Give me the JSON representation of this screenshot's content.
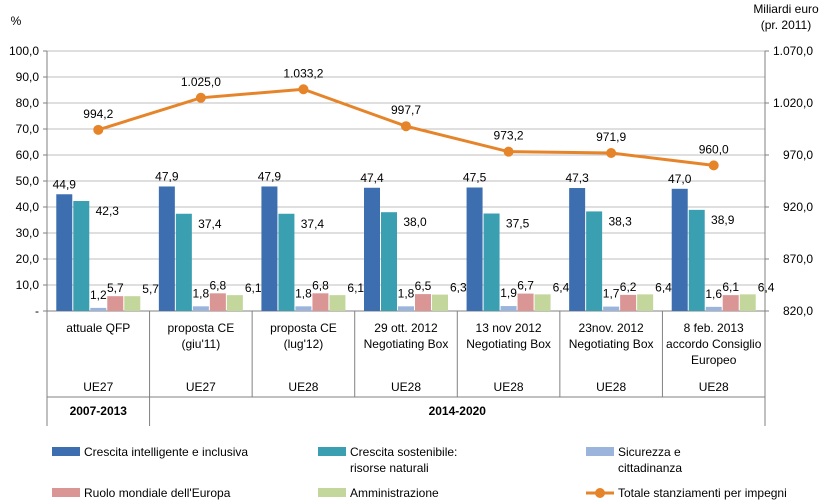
{
  "chart_data": {
    "type": "bar",
    "left_axis_unit": "%",
    "right_axis_unit_line1": "Miliardi euro",
    "right_axis_unit_line2": "(pr. 2011)",
    "left_ticks": [
      "-",
      "10,0",
      "20,0",
      "30,0",
      "40,0",
      "50,0",
      "60,0",
      "70,0",
      "80,0",
      "90,0",
      "100,0"
    ],
    "right_ticks": [
      "820,0",
      "870,0",
      "920,0",
      "970,0",
      "1.020,0",
      "1.070,0"
    ],
    "ylim_left": [
      0,
      100
    ],
    "ylim_right": [
      820,
      1070
    ],
    "categories": [
      {
        "line1": "attuale QFP",
        "line2": "",
        "line3": "",
        "group": "UE27"
      },
      {
        "line1": "proposta CE",
        "line2": "(giu'11)",
        "line3": "",
        "group": "UE27"
      },
      {
        "line1": "proposta CE",
        "line2": "(lug'12)",
        "line3": "",
        "group": "UE28"
      },
      {
        "line1": "29 ott. 2012",
        "line2": "Negotiating Box",
        "line3": "",
        "group": "UE28"
      },
      {
        "line1": "13 nov 2012",
        "line2": "Negotiating Box",
        "line3": "",
        "group": "UE28"
      },
      {
        "line1": "23nov. 2012",
        "line2": "Negotiating Box",
        "line3": "",
        "group": "UE28"
      },
      {
        "line1": "8 feb. 2013",
        "line2": "accordo Consiglio",
        "line3": "Europeo",
        "group": "UE28"
      }
    ],
    "periods": [
      {
        "label": "2007-2013",
        "span": [
          0,
          0
        ]
      },
      {
        "label": "2014-2020",
        "span": [
          1,
          6
        ]
      }
    ],
    "series": [
      {
        "name": "Crescita intelligente e inclusiva",
        "color": "#3d6fb0",
        "values": [
          44.9,
          47.9,
          47.9,
          47.4,
          47.5,
          47.3,
          47.0
        ],
        "labels": [
          "44,9",
          "47,9",
          "47,9",
          "47,4",
          "47,5",
          "47,3",
          "47,0"
        ]
      },
      {
        "name": "Crescita sostenibile: risorse naturali",
        "name_line1": "Crescita sostenibile:",
        "name_line2": "risorse naturali",
        "color": "#3a9fb0",
        "values": [
          42.3,
          37.4,
          37.4,
          38.0,
          37.5,
          38.3,
          38.9
        ],
        "labels": [
          "42,3",
          "37,4",
          "37,4",
          "38,0",
          "37,5",
          "38,3",
          "38,9"
        ]
      },
      {
        "name": "Sicurezza e cittadinanza",
        "name_line1": "Sicurezza e",
        "name_line2": "cittadinanza",
        "color": "#9bb4dc",
        "values": [
          1.2,
          1.8,
          1.8,
          1.8,
          1.9,
          1.7,
          1.6
        ],
        "labels": [
          "1,2",
          "1,8",
          "1,8",
          "1,8",
          "1,9",
          "1,7",
          "1,6"
        ]
      },
      {
        "name": "Ruolo mondiale dell'Europa",
        "color": "#d99694",
        "values": [
          5.7,
          6.8,
          6.8,
          6.5,
          6.7,
          6.2,
          6.1
        ],
        "labels": [
          "5,7",
          "6,8",
          "6,8",
          "6,5",
          "6,7",
          "6,2",
          "6,1"
        ]
      },
      {
        "name": "Amministrazione",
        "color": "#c3d69b",
        "values": [
          5.7,
          6.1,
          6.1,
          6.3,
          6.4,
          6.4,
          6.4
        ],
        "labels": [
          "5,7",
          "6,1",
          "6,1",
          "6,3",
          "6,4",
          "6,4",
          "6,4"
        ]
      }
    ],
    "line_series": {
      "name": "Totale stanziamenti per impegni",
      "axis": "right",
      "color": "#e6842a",
      "values": [
        994.2,
        1025.0,
        1033.2,
        997.7,
        973.2,
        971.9,
        960.0
      ],
      "labels": [
        "994,2",
        "1.025,0",
        "1.033,2",
        "997,7",
        "973,2",
        "971,9",
        "960,0"
      ]
    },
    "legend_position": "bottom",
    "grid": true
  }
}
